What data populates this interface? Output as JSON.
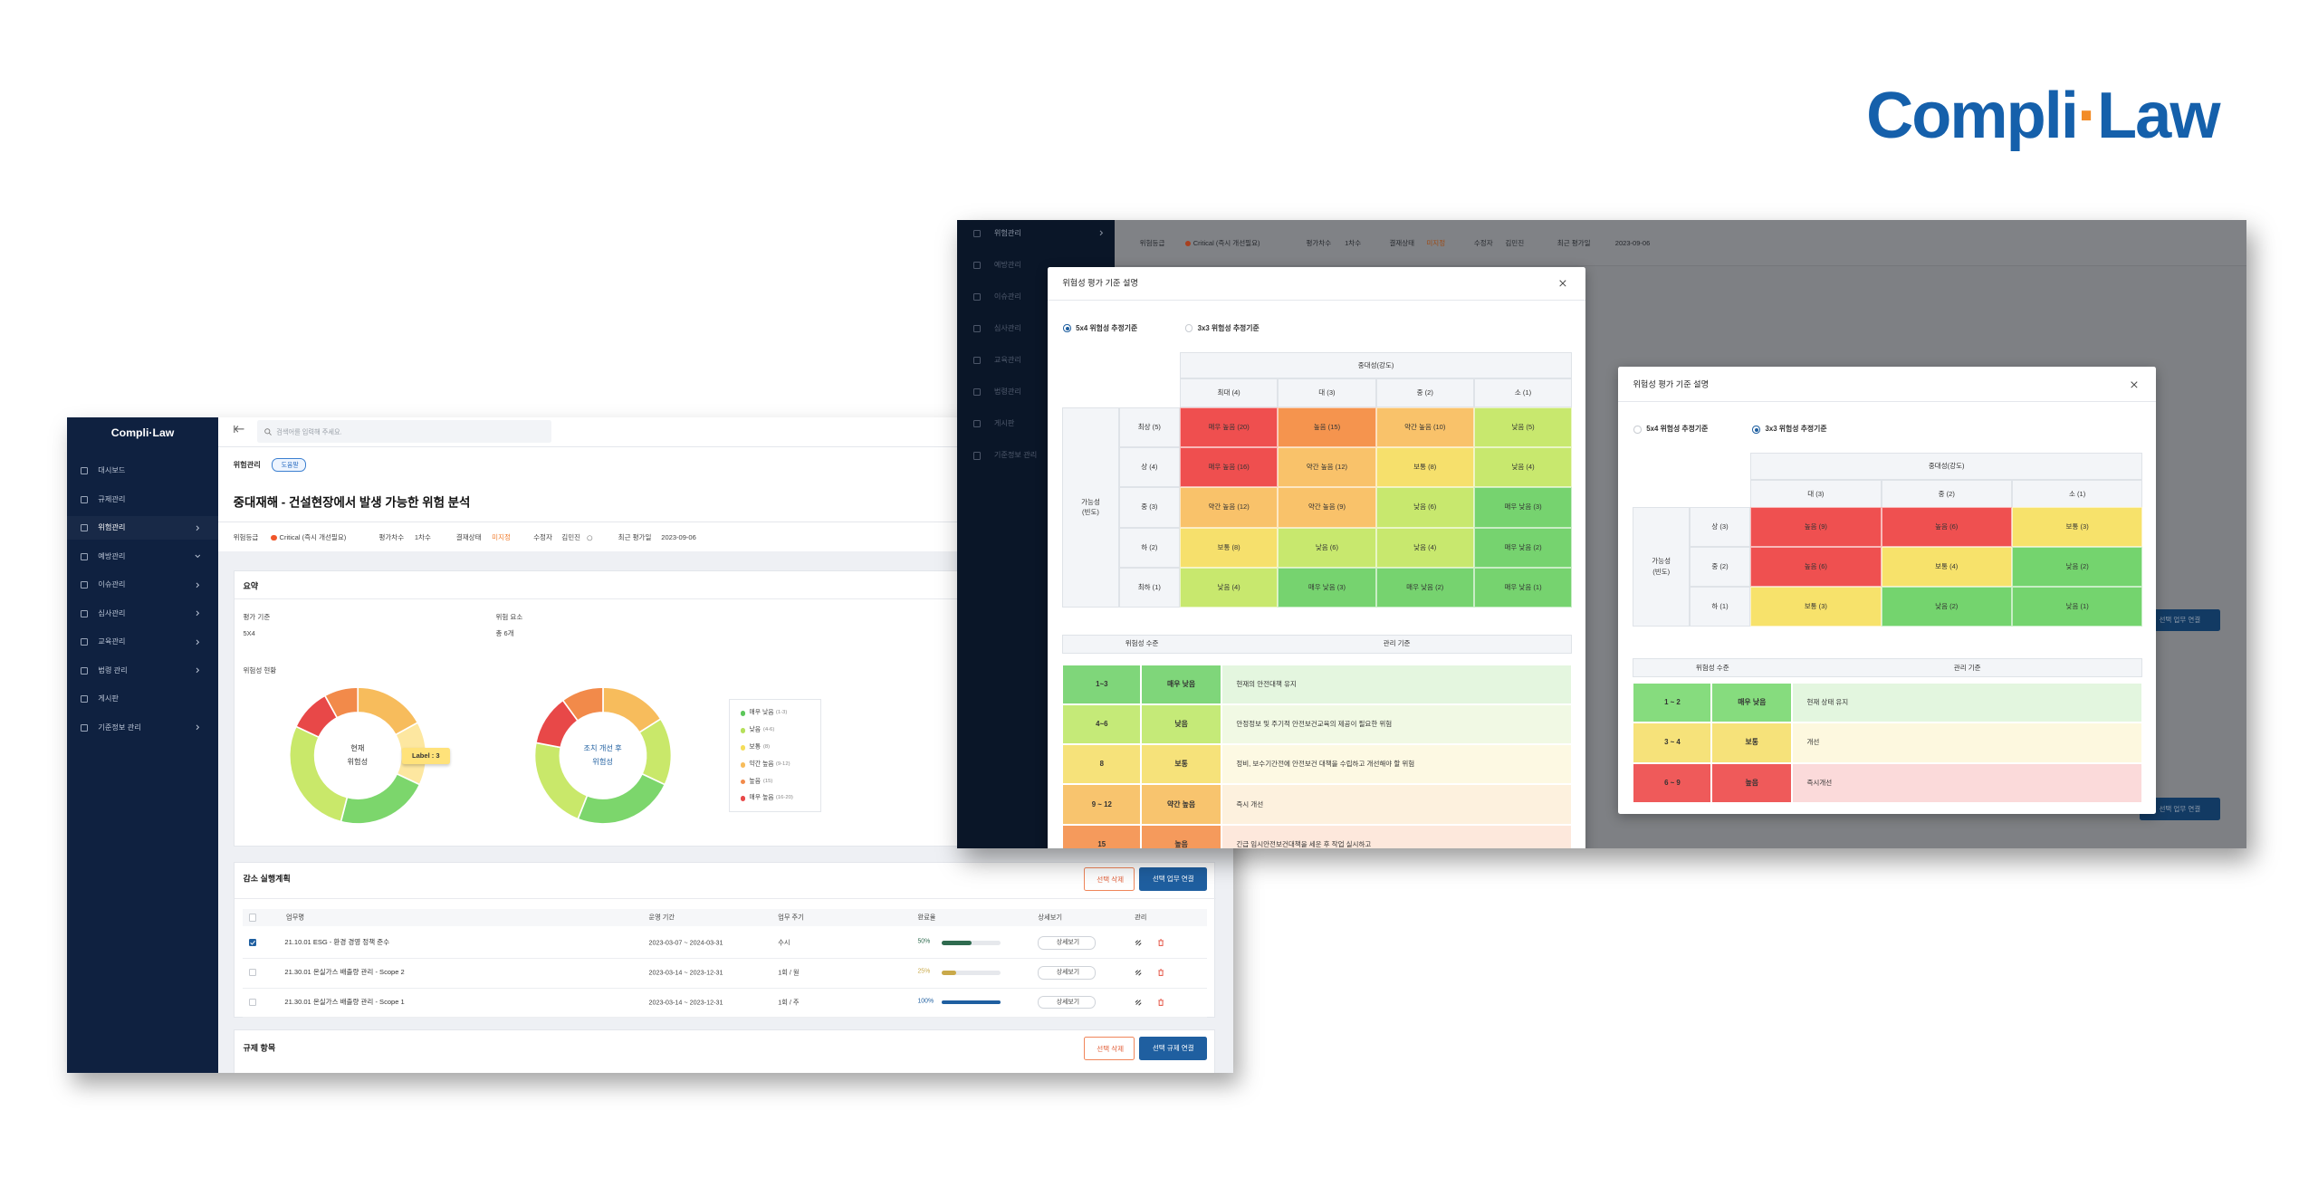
{
  "logo": {
    "left": "Compli",
    "dot": "·",
    "right": "Law"
  },
  "left_screen": {
    "sidebar_logo": "Compli·Law",
    "menu": [
      {
        "label": "대시보드",
        "submenu": false
      },
      {
        "label": "규제관리",
        "submenu": false
      },
      {
        "label": "위험관리",
        "submenu": "right",
        "active": true
      },
      {
        "label": "예방관리",
        "submenu": "down"
      },
      {
        "label": "이슈관리",
        "submenu": "right"
      },
      {
        "label": "심사관리",
        "submenu": "right"
      },
      {
        "label": "교육관리",
        "submenu": "right"
      },
      {
        "label": "법령 관리",
        "submenu": "right"
      },
      {
        "label": "게시판",
        "submenu": false
      },
      {
        "label": "기준정보 관리",
        "submenu": "right"
      }
    ],
    "search_placeholder": "검색어를 입력해 주세요.",
    "breadcrumb": "위험관리",
    "help": "도움말",
    "title": "중대재해 - 건설현장에서 발생 가능한 위험 분석",
    "info": [
      {
        "label": "위험등급",
        "value": "Critical (즉시 개선필요)",
        "dot": "#f0562a"
      },
      {
        "label": "평가차수",
        "value": "1차수"
      },
      {
        "label": "결재상태",
        "value": "미지정",
        "color": "#f07a2a"
      },
      {
        "label": "수정자",
        "value": "김민진"
      },
      {
        "label": "최근 평가일",
        "value": "2023-09-06"
      }
    ],
    "summary": {
      "title": "요약",
      "criteria_label": "평가 기준",
      "criteria": "5X4",
      "factors_label": "위험 요소",
      "factors": "총 6개",
      "status_label": "위험성 현황",
      "donuts": [
        {
          "center": [
            "현재",
            "위험성"
          ],
          "values": [
            17,
            15,
            22,
            28,
            10,
            8
          ],
          "colors": [
            "#f7bc5c",
            "#fde7a0",
            "#7cd66c",
            "#c9e86a",
            "#e84848",
            "#f28a4a"
          ]
        },
        {
          "center": [
            "조치 개선 후",
            "위험성"
          ],
          "values": [
            16,
            16,
            24,
            22,
            12,
            10
          ],
          "colors": [
            "#f7bc5c",
            "#c9e86a",
            "#7cd66c",
            "#c9e86a",
            "#e84848",
            "#f28a4a"
          ]
        }
      ],
      "tooltip": "Label : 3",
      "legend": [
        {
          "name": "매우 낮음",
          "range": "(1-3)",
          "color": "#5cc75a"
        },
        {
          "name": "낮음",
          "range": "(4-6)",
          "color": "#b5e05a"
        },
        {
          "name": "보통",
          "range": "(8)",
          "color": "#f5dd5a"
        },
        {
          "name": "약간 높음",
          "range": "(9-12)",
          "color": "#f7bc5c"
        },
        {
          "name": "높음",
          "range": "(15)",
          "color": "#f28a4a"
        },
        {
          "name": "매우 높음",
          "range": "(16-20)",
          "color": "#e84848"
        }
      ]
    },
    "plan": {
      "title": "감소 실행계획",
      "delete": "선택 삭제",
      "link": "선택 업무 연결",
      "columns": [
        "업무명",
        "운영 기간",
        "업무 주기",
        "완료율",
        "상세보기",
        "관리"
      ],
      "rows": [
        {
          "checked": true,
          "task": "21.10.01 ESG - 환경 경영 정책 준수",
          "period": "2023-03-07 ~ 2024-03-31",
          "cycle": "수시",
          "detail": "상세보기"
        },
        {
          "checked": false,
          "task": "21.30.01 온실가스 배출량 관리 - Scope 2",
          "period": "2023-03-14 ~ 2023-12-31",
          "cycle": "1회 / 월",
          "detail": "상세보기"
        },
        {
          "checked": false,
          "task": "21.30.01 온실가스 배출량 관리 - Scope 1",
          "period": "2023-03-14 ~ 2023-12-31",
          "cycle": "1회 / 주",
          "detail": "상세보기"
        }
      ],
      "progress": {
        "values": [
          50,
          25,
          100
        ],
        "value_labels": [
          "50%",
          "25%",
          "100%"
        ],
        "colors": [
          "#2f6b4f",
          "#c9a94a",
          "#1f5fa0"
        ]
      }
    },
    "regulation": {
      "title": "규제 항목",
      "delete": "선택 삭제",
      "link": "선택 규제 연결"
    }
  },
  "right_screen": {
    "menu": [
      "위험관리",
      "예방관리",
      "이슈관리",
      "심사관리",
      "교육관리",
      "법령관리",
      "게시판",
      "기준정보 관리"
    ],
    "info": [
      {
        "label": "위험등급",
        "value": "Critical (즉시 개선필요)",
        "dot": "#a8401f"
      },
      {
        "label": "평가차수",
        "value": "1차수"
      },
      {
        "label": "결재상태",
        "value": "미지정",
        "color": "#9c4a14"
      },
      {
        "label": "수정자",
        "value": "김민진"
      },
      {
        "label": "최근 평가일",
        "value": "2023-09-06"
      }
    ],
    "buttons": [
      "선택 업무 연결",
      "선택 업무 연결"
    ],
    "modal_5x4": {
      "title": "위험성 평가 기준 설명",
      "options": [
        "5x4 위험성 추정기준",
        "3x3 위험성 추정기준"
      ],
      "selected": 0,
      "severity": "중대성(강도)",
      "likelihood": [
        "가능성",
        "(빈도)"
      ],
      "columns": [
        "최대 (4)",
        "대 (3)",
        "중 (2)",
        "소 (1)"
      ],
      "rows": [
        "최상 (5)",
        "상 (4)",
        "중 (3)",
        "하 (2)",
        "최하 (1)"
      ],
      "cells": [
        [
          {
            "text": "매우 높음 (20)",
            "color": "#ef4f4f"
          },
          {
            "text": "높음 (15)",
            "color": "#f5944e"
          },
          {
            "text": "약간 높음 (10)",
            "color": "#f9c26a"
          },
          {
            "text": "낮음 (5)",
            "color": "#c8e86e"
          }
        ],
        [
          {
            "text": "매우 높음 (16)",
            "color": "#ef4f4f"
          },
          {
            "text": "약간 높음 (12)",
            "color": "#f9c26a"
          },
          {
            "text": "보통 (8)",
            "color": "#f6e06c"
          },
          {
            "text": "낮음 (4)",
            "color": "#c8e86e"
          }
        ],
        [
          {
            "text": "약간 높음 (12)",
            "color": "#f9c26a"
          },
          {
            "text": "약간 높음 (9)",
            "color": "#f9c26a"
          },
          {
            "text": "낮음 (6)",
            "color": "#c8e86e"
          },
          {
            "text": "매우 낮음 (3)",
            "color": "#76d36f"
          }
        ],
        [
          {
            "text": "보통 (8)",
            "color": "#f6e06c"
          },
          {
            "text": "낮음 (6)",
            "color": "#c8e86e"
          },
          {
            "text": "낮음 (4)",
            "color": "#c8e86e"
          },
          {
            "text": "매우 낮음 (2)",
            "color": "#76d36f"
          }
        ],
        [
          {
            "text": "낮음 (4)",
            "color": "#c8e86e"
          },
          {
            "text": "매우 낮음 (3)",
            "color": "#76d36f"
          },
          {
            "text": "매우 낮음 (2)",
            "color": "#76d36f"
          },
          {
            "text": "매우 낮음 (1)",
            "color": "#76d36f"
          }
        ]
      ],
      "level_header": "위험성 수준",
      "criteria_header": "관리 기준",
      "levels": [
        {
          "range": "1~3",
          "name": "매우 낮음",
          "criteria": "현재의 안전대책 유지",
          "color": "#7fd67a",
          "bg": "#e4f6df"
        },
        {
          "range": "4~6",
          "name": "낮음",
          "criteria": "안정정보 및 주기적 안전보건교육의 제공이 필요한 위험",
          "color": "#c5ea78",
          "bg": "#f1f9e4"
        },
        {
          "range": "8",
          "name": "보통",
          "criteria": "정비, 보수기간전에 안전보건 대책을 수립하고 개선해야 할 위험",
          "color": "#f6e27a",
          "bg": "#fdf9e3"
        },
        {
          "range": "9 ~ 12",
          "name": "약간 높음",
          "criteria": "즉시 개선",
          "color": "#f8c46e",
          "bg": "#fdf1de"
        },
        {
          "range": "15",
          "name": "높음",
          "criteria": "긴급 임시안전보건대책을 세운 후 작업 실시하고",
          "color": "#f59a5c",
          "bg": "#fde8dc"
        }
      ]
    },
    "modal_3x3": {
      "title": "위험성 평가 기준 설명",
      "options": [
        "5x4 위험성 추정기준",
        "3x3 위험성 추정기준"
      ],
      "selected": 1,
      "severity": "중대성(강도)",
      "likelihood": [
        "가능성",
        "(빈도)"
      ],
      "columns": [
        "대 (3)",
        "중 (2)",
        "소 (1)"
      ],
      "rows": [
        "상 (3)",
        "중 (2)",
        "하 (1)"
      ],
      "cells": [
        [
          {
            "text": "높음 (9)",
            "color": "#ef5050"
          },
          {
            "text": "높음 (6)",
            "color": "#ef5050"
          },
          {
            "text": "보통 (3)",
            "color": "#f7e26b"
          }
        ],
        [
          {
            "text": "높음 (6)",
            "color": "#ef5050"
          },
          {
            "text": "보통 (4)",
            "color": "#f7e26b"
          },
          {
            "text": "낮음 (2)",
            "color": "#74d46e"
          }
        ],
        [
          {
            "text": "보통 (3)",
            "color": "#f7e26b"
          },
          {
            "text": "낮음 (2)",
            "color": "#74d46e"
          },
          {
            "text": "낮음 (1)",
            "color": "#74d46e"
          }
        ]
      ],
      "level_header": "위험성 수준",
      "criteria_header": "관리 기준",
      "levels": [
        {
          "range": "1 ~ 2",
          "name": "매우 낮음",
          "criteria": "현재 상태 유지",
          "color": "#86dc7e",
          "bg": "#e3f6df"
        },
        {
          "range": "3 ~ 4",
          "name": "보통",
          "criteria": "개선",
          "color": "#f6e27a",
          "bg": "#fdf8df"
        },
        {
          "range": "6 ~ 9",
          "name": "높음",
          "criteria": "즉시개선",
          "color": "#ef5a5a",
          "bg": "#fbdada"
        }
      ]
    }
  }
}
